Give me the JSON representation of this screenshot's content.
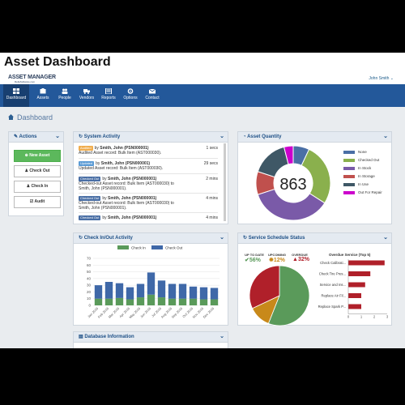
{
  "page_title": "Asset Dashboard",
  "header": {
    "logo": "ASSET MANAGER",
    "logo_sub": "ReliaSoftware.com",
    "user": "John Smith ⌄"
  },
  "nav": [
    {
      "label": "Dashboard",
      "icon": "dashboard-icon"
    },
    {
      "label": "Assets",
      "icon": "assets-icon"
    },
    {
      "label": "People",
      "icon": "people-icon"
    },
    {
      "label": "Vendors",
      "icon": "truck-icon"
    },
    {
      "label": "Reports",
      "icon": "reports-icon"
    },
    {
      "label": "Options",
      "icon": "gear-icon"
    },
    {
      "label": "Contact",
      "icon": "envelope-icon"
    }
  ],
  "breadcrumb": "Dashboard",
  "actions": {
    "title": "Actions",
    "buttons": [
      "New Asset",
      "Check Out",
      "Check In",
      "Audit"
    ]
  },
  "activity": {
    "title": "System Activity",
    "rows": [
      {
        "badge": "Audited",
        "badge_color": "#f0ad4e",
        "by": "by ",
        "user": "Smith, John (PSN000001)",
        "line2": "Audited Asset record: Bulk Item (AST000030).",
        "line3": "",
        "time": "1 secs"
      },
      {
        "badge": "Updated",
        "badge_color": "#5b9bd5",
        "by": "by ",
        "user": "Smith, John (PSN000001)",
        "line2": "Updated Asset record: Bulk Item (AST000030).",
        "line3": "",
        "time": "29 secs"
      },
      {
        "badge": "Checked Out",
        "badge_color": "#4a6fa5",
        "by": "by ",
        "user": "Smith, John (PSN000001)",
        "line2": "Checked-out Asset record: Bulk Item (AST000030) to",
        "line3": "Smith, John (PSN000001).",
        "time": "2 mins"
      },
      {
        "badge": "Checked Out",
        "badge_color": "#4a6fa5",
        "by": "by ",
        "user": "Smith, John (PSN000001)",
        "line2": "Checked-out Asset record: Bulk Item (AST000030) to",
        "line3": "Smith, John (PSN000001).",
        "time": "4 mins"
      },
      {
        "badge": "Checked Out",
        "badge_color": "#4a6fa5",
        "by": "by ",
        "user": "Smith, John (PSN000001)",
        "line2": "",
        "line3": "",
        "time": "4 mins"
      }
    ]
  },
  "asset_quantity": {
    "title": "Asset Quantity",
    "total": "863",
    "legend": [
      {
        "label": "None",
        "color": "#4a6fa5"
      },
      {
        "label": "Checked Out",
        "color": "#8ab04d"
      },
      {
        "label": "In Stock",
        "color": "#7a5aa8"
      },
      {
        "label": "In Storage",
        "color": "#c0504d"
      },
      {
        "label": "In Use",
        "color": "#3f5866"
      },
      {
        "label": "Out For Repair",
        "color": "#cc00cc"
      }
    ],
    "fractions": [
      0.07,
      0.27,
      0.36,
      0.1,
      0.16,
      0.04
    ]
  },
  "checkinout": {
    "title": "Check In/Out Activity",
    "legend_in": "Check In",
    "legend_out": "Check Out",
    "in_color": "#5a9a5a",
    "out_color": "#3f68a8"
  },
  "chart_data": {
    "type": "bar",
    "categories": [
      "Jan 2016",
      "Feb 2016",
      "Mar 2016",
      "Apr 2016",
      "May 2016",
      "Jun 2016",
      "Jul 2016",
      "Aug 2016",
      "Sep 2016",
      "Oct 2016",
      "Nov 2016",
      "Dec 2016"
    ],
    "series": [
      {
        "name": "Check In",
        "values": [
          10,
          10,
          11,
          9,
          12,
          16,
          12,
          10,
          10,
          10,
          9,
          9
        ]
      },
      {
        "name": "Check Out",
        "values": [
          20,
          25,
          22,
          18,
          20,
          33,
          25,
          22,
          22,
          18,
          18,
          17
        ]
      }
    ],
    "yticks": [
      "0",
      "10",
      "20",
      "30",
      "40",
      "50",
      "60",
      "70"
    ],
    "ylim": [
      0,
      70
    ],
    "stacked": true,
    "grid": true,
    "legend_position": "top"
  },
  "service": {
    "title": "Service Schedule Status",
    "up_to_date_label": "UP TO DATE",
    "up_to_date_value": "56%",
    "upcoming_label": "UPCOMING",
    "upcoming_value": "12%",
    "overdue_label": "OVERDUE",
    "overdue_value": "32%",
    "colors": {
      "up": "#5a9a5a",
      "upcoming": "#c8891a",
      "overdue": "#b0202a"
    },
    "fractions": [
      0.56,
      0.12,
      0.32
    ],
    "overdue_title": "Overdue Service (Top 5)",
    "overdue_items": [
      {
        "label": "Check Calibrati...",
        "value": 2.8
      },
      {
        "label": "Check Tire Pres...",
        "value": 1.7
      },
      {
        "label": "Service and Ins...",
        "value": 1.3
      },
      {
        "label": "Replace Air Fil...",
        "value": 1.0
      },
      {
        "label": "Replace Spark P...",
        "value": 1.0
      }
    ],
    "overdue_xticks": [
      "0",
      "1",
      "2",
      "3"
    ],
    "overdue_xmax": 3
  },
  "database": {
    "title": "Database Information"
  }
}
